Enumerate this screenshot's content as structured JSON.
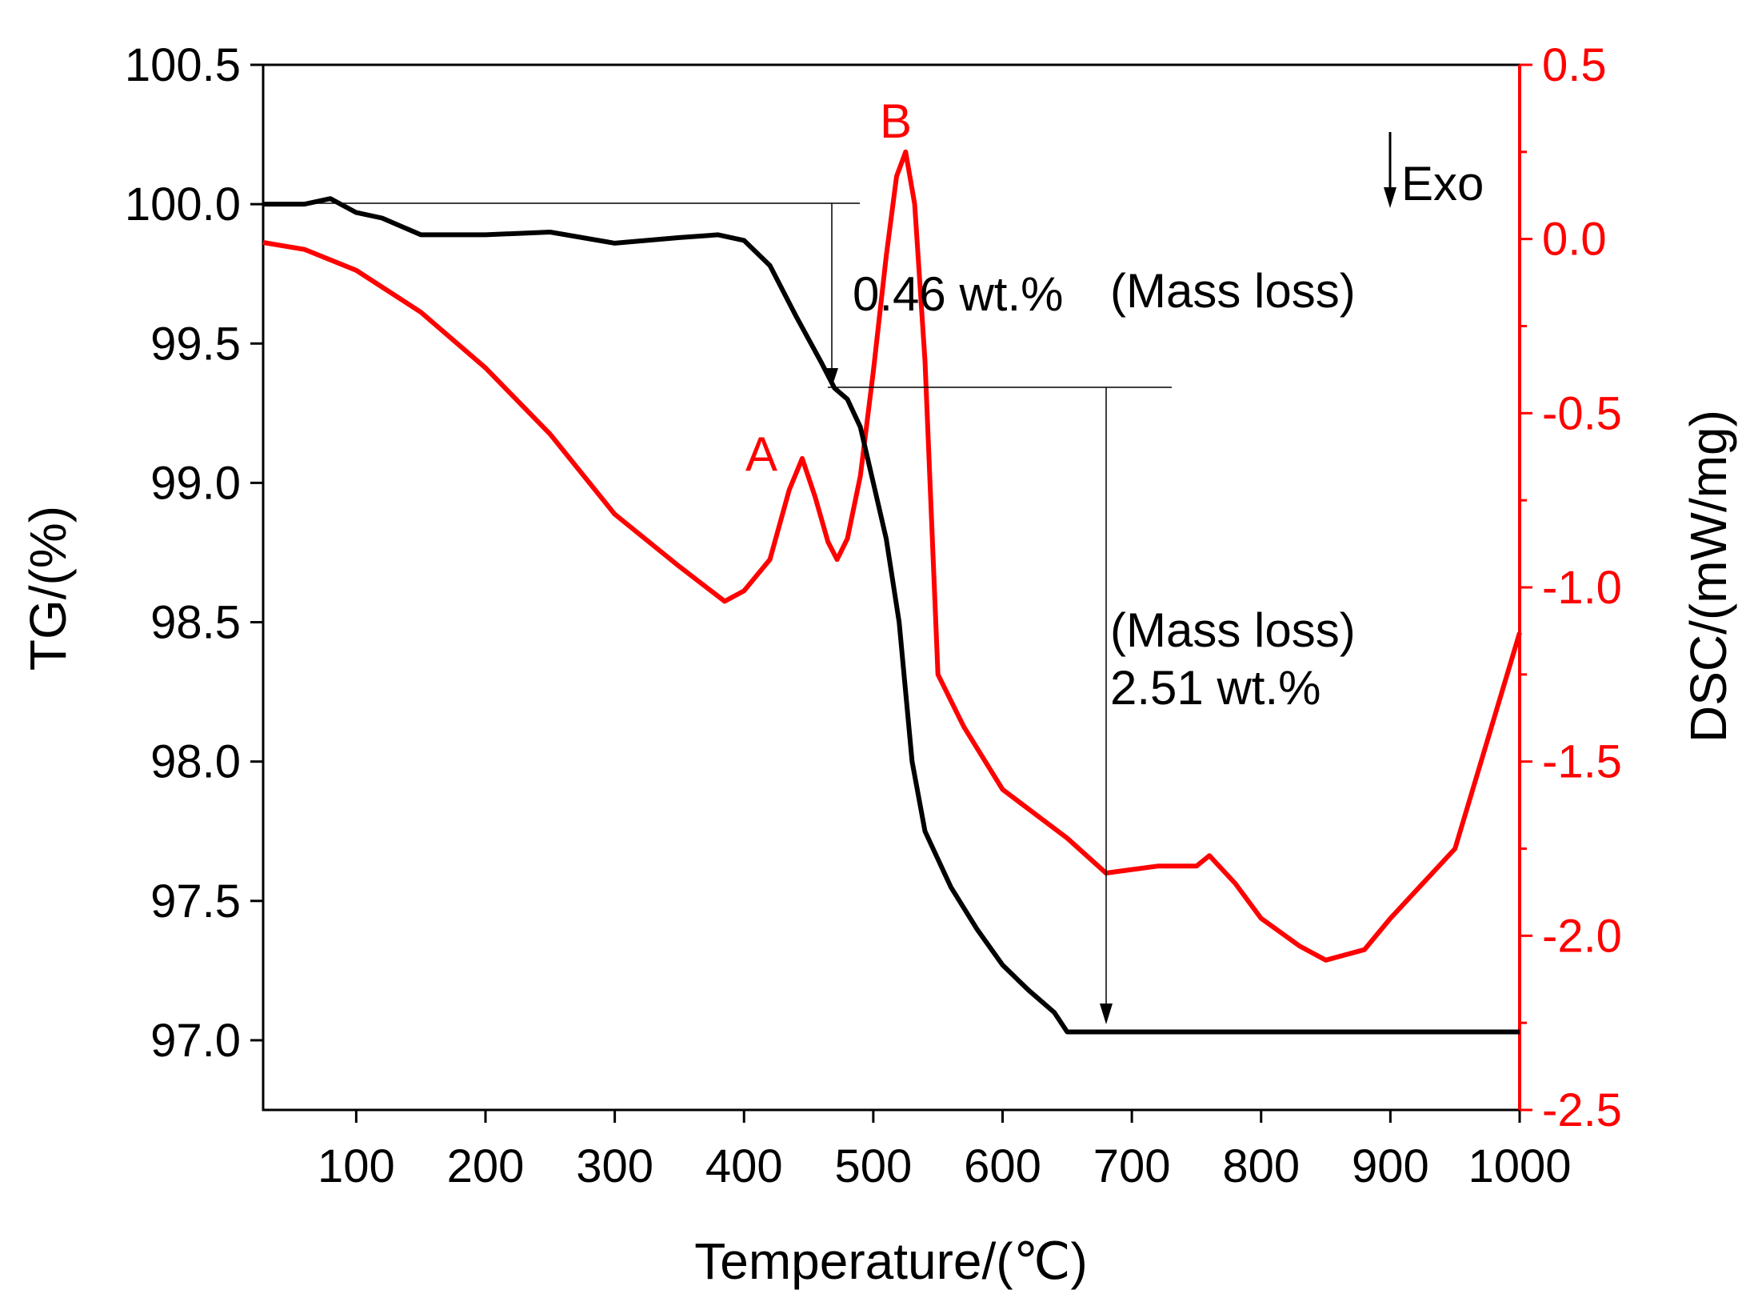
{
  "chart_data": {
    "type": "line",
    "xlabel": "Temperature/(℃)",
    "ylabel_left": "TG/(%)",
    "ylabel_right": "DSC/(mW/mg)",
    "xlim": [
      28,
      1000
    ],
    "ylim_left": [
      96.75,
      100.5
    ],
    "ylim_right": [
      -2.5,
      0.5
    ],
    "xticks": [
      "100",
      "200",
      "300",
      "400",
      "500",
      "600",
      "700",
      "800",
      "900",
      "1000"
    ],
    "xtick_values": [
      100,
      200,
      300,
      400,
      500,
      600,
      700,
      800,
      900,
      1000
    ],
    "yticks_left": [
      "97.0",
      "97.5",
      "98.0",
      "98.5",
      "99.0",
      "99.5",
      "100.0",
      "100.5"
    ],
    "ytick_values_left": [
      97.0,
      97.5,
      98.0,
      98.5,
      99.0,
      99.5,
      100.0,
      100.5
    ],
    "yticks_right": [
      "-2.5",
      "-2.0",
      "-1.5",
      "-1.0",
      "-0.5",
      "0.0",
      "0.5"
    ],
    "ytick_values_right": [
      -2.5,
      -2.0,
      -1.5,
      -1.0,
      -0.5,
      0.0,
      0.5
    ],
    "colors": {
      "tg": "#000000",
      "dsc": "#ff0000",
      "right_axis": "#ff0000"
    },
    "series": [
      {
        "name": "TG",
        "axis": "left",
        "x": [
          28,
          60,
          80,
          100,
          120,
          150,
          200,
          250,
          300,
          350,
          380,
          400,
          420,
          440,
          460,
          470,
          480,
          490,
          500,
          510,
          520,
          530,
          540,
          560,
          580,
          600,
          620,
          640,
          650,
          700,
          800,
          900,
          1000
        ],
        "values": [
          100.0,
          100.0,
          100.02,
          99.97,
          99.95,
          99.89,
          99.89,
          99.9,
          99.86,
          99.88,
          99.89,
          99.87,
          99.78,
          99.6,
          99.43,
          99.34,
          99.3,
          99.2,
          99.0,
          98.8,
          98.5,
          98.0,
          97.75,
          97.55,
          97.4,
          97.27,
          97.18,
          97.1,
          97.03,
          97.03,
          97.03,
          97.03,
          97.03
        ]
      },
      {
        "name": "DSC",
        "axis": "right",
        "x": [
          28,
          60,
          100,
          150,
          200,
          250,
          300,
          350,
          385,
          400,
          420,
          435,
          445,
          455,
          465,
          472,
          480,
          490,
          500,
          510,
          518,
          525,
          532,
          540,
          550,
          570,
          600,
          650,
          680,
          700,
          720,
          750,
          760,
          780,
          800,
          830,
          850,
          880,
          900,
          950,
          1000
        ],
        "values": [
          -0.01,
          -0.03,
          -0.09,
          -0.21,
          -0.37,
          -0.56,
          -0.79,
          -0.94,
          -1.04,
          -1.01,
          -0.92,
          -0.72,
          -0.63,
          -0.74,
          -0.87,
          -0.92,
          -0.86,
          -0.68,
          -0.38,
          -0.05,
          0.18,
          0.25,
          0.1,
          -0.35,
          -1.25,
          -1.4,
          -1.58,
          -1.72,
          -1.82,
          -1.81,
          -1.8,
          -1.8,
          -1.77,
          -1.85,
          -1.95,
          -2.03,
          -2.07,
          -2.04,
          -1.95,
          -1.75,
          -1.13
        ]
      }
    ],
    "annotations": {
      "loss1": {
        "value": "0.46 wt.%",
        "label": "(Mass loss)"
      },
      "loss2": {
        "label": "(Mass loss)",
        "value": "2.51 wt.%"
      },
      "peak_a": "A",
      "peak_b": "B",
      "exo": "Exo"
    }
  }
}
